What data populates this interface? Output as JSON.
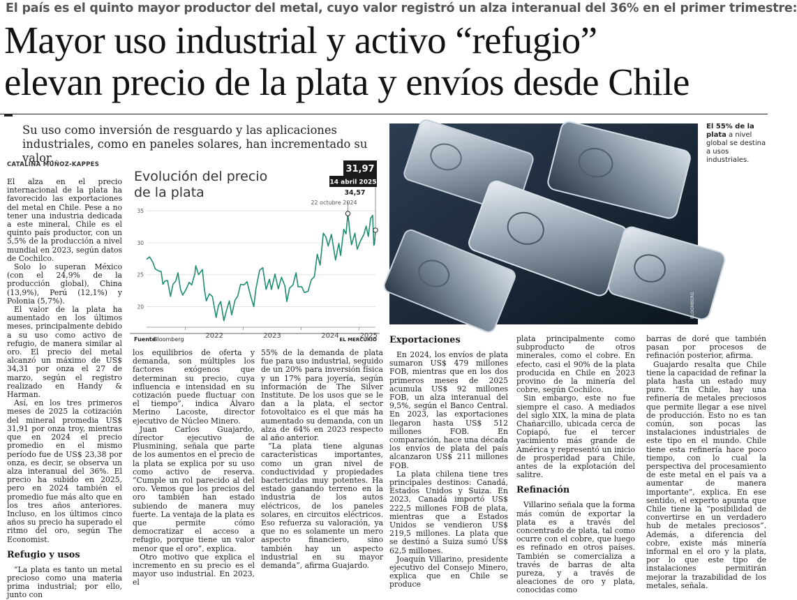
{
  "article": {
    "kicker": "El país es el quinto mayor productor del metal, cuyo valor registró un alza interanual del 36% en el primer trimestre:",
    "headline_line1": "Mayor uso industrial y activo “refugio”",
    "headline_line2": "elevan precio de la plata y envíos desde Chile",
    "subheadline": "Su uso como inversión de resguardo y las aplicaciones industriales, como en paneles solares, han incrementado su valor.",
    "byline": "CATALINA MUÑOZ-KAPPES",
    "col1": {
      "p1": "El alza en el precio internacional de la plata ha favorecido las exportaciones del metal en Chile. Pese a no tener una industria dedicada a este mineral, Chile es el quinto país productor, con un 5,5% de la producción a nivel mundial en 2023, según datos de Cochilco.",
      "p2": "Solo lo superan México (con el 24,9% de la producción global), China (13,9%), Perú (12,1%) y Polonia (5,7%).",
      "p3": "El valor de la plata ha aumentado en los últimos meses, principalmente debido a su uso como activo de refugio, de manera similar al oro. El precio del metal alcanzó un máximo de US$ 34,31 por onza el 27 de marzo, según el registro realizado en Handy & Harman.",
      "p4": "Así, en los tres primeros meses de 2025 la cotización del mineral promedia US$ 31,91 por onza troy, mientras que en 2024 el precio promedio en el mismo período fue de US$ 23,38 por onza, es decir, se observa un alza interanual del 36%. El precio ha subido en 2025, pero en 2024 también el promedio fue más alto que en los tres años anteriores. Incluso, en los últimos cinco años su precio ha superado el ritmo del oro, según The Economist.",
      "h_refugio": "Refugio y usos",
      "p5": "“La plata es tanto un metal precioso como una materia prima industrial; por ello, junto con"
    },
    "col2": {
      "p1": "los equilibrios de oferta y demanda, son múltiples los factores exógenos que determinan su precio, cuya influencia e intensidad en su cotización puede fluctuar con el tiempo”, indica Álvaro Merino Lacoste, director ejecutivo de Núcleo Minero.",
      "p2": "Juan Carlos Guajardo, director ejecutivo de Plusmining, señala que parte de los aumentos en el precio de la plata se explica por su uso como activo de reserva. “Cumple un rol parecido al del oro. Vemos que los precios del oro también han estado subiendo de manera muy fuerte. La ventaja de la plata es que permite cómo democratizar el acceso a refugio, porque tiene un valor menor que el oro”, explica.",
      "p3": "Otro motivo que explica el incremento en su precio es el mayor uso industrial. En 2023, el"
    },
    "col3": {
      "p1": "55% de la demanda de plata fue para uso industrial, seguido de un 20% para inversión física y un 17% para joyería, según información de The Silver Institute. De los usos que se le dan a la plata, el sector fotovoltaico es el que más ha aumentado su demanda, con un alza de 64% en 2023 respecto al año anterior.",
      "p2": "“La plata tiene algunas características importantes, como un gran nivel de conductividad y propiedades bactericidas muy potentes. Ha estado ganando terreno en la industria de los autos eléctricos, de los paneles solares, en circuitos eléctricos. Eso refuerza su valoración, ya que no es solamente un mero aspecto financiero, sino también hay un aspecto industrial en su mayor demanda”, afirma Guajardo."
    },
    "col4": {
      "h_export": "Exportaciones",
      "p1": "En 2024, los envíos de plata sumaron US$ 479 millones FOB, mientras que en los dos primeros meses de 2025 acumula US$ 92 millones FOB, un alza interanual del 9,5%, según el Banco Central. En 2023, las exportaciones llegaron hasta US$ 512 millones FOB. En comparación, hace una década los envíos de plata del país alcanzaron US$ 211 millones FOB.",
      "p2": "La plata chilena tiene tres principales destinos: Canadá, Estados Unidos y Suiza. En 2023, Canadá importó US$ 222,5 millones FOB de plata, mientras que a Estados Unidos se vendieron US$ 219,5 millones. La plata que se destinó a Suiza sumó US$ 62,5 millones.",
      "p3": "Joaquín Villarino, presidente ejecutivo del Consejo Minero, explica que en Chile se produce"
    },
    "col5": {
      "p1": "plata principalmente como subproducto de otros minerales, como el cobre. En efecto, casi el 90% de la plata producida en Chile en 2023 provino de la minería del cobre, según Cochilco.",
      "p2": "Sin embargo, este no fue siempre el caso. A mediados del siglo XIX, la mina de plata Chañarcillo, ubicada cerca de Copiapó, fue el tercer yacimiento más grande de América y representó un inicio de prosperidad para Chile, antes de la explotación del salitre.",
      "h_refinacion": "Refinación",
      "p3": "Villarino señala que la forma más común de exportar la plata es a través del concentrado de plata, tal como ocurre con el cobre, que luego es refinado en otros países. También se comercializa a través de barras de alta pureza, y a través de aleaciones de oro y plata, conocidas como"
    },
    "col6": {
      "p1": "barras de doré que también pasan por procesos de refinación posterior, afirma.",
      "p2": "Guajardo resalta que Chile tiene la capacidad de refinar la plata hasta un estado muy puro. “En Chile, hay una refinería de metales preciosos que permite llegar a ese nivel de producción. Esto no es tan común, son pocas las instalaciones industriales de este tipo en el mundo. Chile tiene esta refinería hace poco tiempo, con lo cual la perspectiva del procesamiento de este metal en el país va a aumentar de manera importante”, explica. En ese sentido, el experto apunta que Chile tiene la “posibilidad de convertirse en un verdadero hub de metales preciosos”. Además, a diferencia del cobre, existe más minería informal en el oro y la plata, por lo que este tipo de instalaciones permitirán mejorar la trazabilidad de los metales, señala."
    }
  },
  "photo": {
    "caption_bold": "El 55% de la plata",
    "caption_rest": " a nivel global se destina a usos industriales.",
    "credit": "BLOOMBERG"
  },
  "chart": {
    "footer_source_label": "Fuente",
    "footer_source": "Bloomberg",
    "footer_brand": "EL MERCURIO"
  },
  "chart_data": {
    "type": "line",
    "title": "Evolución del precio de la plata",
    "title_line1": "Evolución del precio",
    "title_line2": "de la plata",
    "xlabel": "",
    "ylabel": "",
    "x_ticks": [
      "2022",
      "2023",
      "2024",
      "2025"
    ],
    "y_ticks": [
      20,
      25,
      30,
      35
    ],
    "ylim": [
      17,
      36
    ],
    "grid": true,
    "annotations": [
      {
        "label_value": "34,57",
        "label_date": "22 octubre 2024",
        "x": "2024-10-22",
        "y": 34.57
      },
      {
        "label_value": "31,97",
        "label_date": "14 abril 2025",
        "x": "2025-04-14",
        "y": 31.97
      }
    ],
    "series": [
      {
        "values": [
          [
            "2021-05-01",
            27.4
          ],
          [
            "2021-05-20",
            27.8
          ],
          [
            "2021-06-10",
            26.9
          ],
          [
            "2021-06-25",
            25.9
          ],
          [
            "2021-07-15",
            25.6
          ],
          [
            "2021-08-01",
            25.5
          ],
          [
            "2021-08-12",
            23.5
          ],
          [
            "2021-08-25",
            24.0
          ],
          [
            "2021-09-10",
            24.1
          ],
          [
            "2021-09-29",
            21.6
          ],
          [
            "2021-10-15",
            23.5
          ],
          [
            "2021-11-01",
            24.0
          ],
          [
            "2021-11-15",
            25.3
          ],
          [
            "2021-12-01",
            22.7
          ],
          [
            "2021-12-15",
            21.8
          ],
          [
            "2022-01-05",
            22.7
          ],
          [
            "2022-01-25",
            23.8
          ],
          [
            "2022-02-10",
            23.4
          ],
          [
            "2022-03-01",
            25.1
          ],
          [
            "2022-03-08",
            26.4
          ],
          [
            "2022-03-25",
            25.0
          ],
          [
            "2022-04-18",
            25.8
          ],
          [
            "2022-05-01",
            22.7
          ],
          [
            "2022-05-13",
            20.9
          ],
          [
            "2022-06-01",
            22.0
          ],
          [
            "2022-06-20",
            21.6
          ],
          [
            "2022-07-14",
            18.3
          ],
          [
            "2022-07-29",
            20.2
          ],
          [
            "2022-08-12",
            20.8
          ],
          [
            "2022-09-01",
            17.8
          ],
          [
            "2022-09-15",
            19.2
          ],
          [
            "2022-10-05",
            20.9
          ],
          [
            "2022-10-20",
            18.7
          ],
          [
            "2022-11-10",
            21.0
          ],
          [
            "2022-11-28",
            21.7
          ],
          [
            "2022-12-15",
            23.5
          ],
          [
            "2023-01-05",
            23.4
          ],
          [
            "2023-01-25",
            23.9
          ],
          [
            "2023-02-15",
            21.8
          ],
          [
            "2023-03-08",
            20.0
          ],
          [
            "2023-03-22",
            22.8
          ],
          [
            "2023-04-14",
            25.7
          ],
          [
            "2023-05-04",
            26.1
          ],
          [
            "2023-05-25",
            22.7
          ],
          [
            "2023-06-15",
            24.3
          ],
          [
            "2023-06-28",
            22.7
          ],
          [
            "2023-07-20",
            25.1
          ],
          [
            "2023-08-10",
            22.8
          ],
          [
            "2023-08-30",
            24.6
          ],
          [
            "2023-09-20",
            23.3
          ],
          [
            "2023-10-03",
            20.8
          ],
          [
            "2023-10-20",
            22.9
          ],
          [
            "2023-11-10",
            23.4
          ],
          [
            "2023-11-30",
            25.3
          ],
          [
            "2023-12-13",
            23.1
          ],
          [
            "2024-01-05",
            23.1
          ],
          [
            "2024-01-22",
            22.2
          ],
          [
            "2024-02-14",
            22.4
          ],
          [
            "2024-03-05",
            24.2
          ],
          [
            "2024-03-25",
            24.7
          ],
          [
            "2024-04-12",
            28.2
          ],
          [
            "2024-04-30",
            26.5
          ],
          [
            "2024-05-20",
            31.5
          ],
          [
            "2024-06-05",
            30.9
          ],
          [
            "2024-06-20",
            29.5
          ],
          [
            "2024-07-10",
            31.3
          ],
          [
            "2024-08-05",
            27.3
          ],
          [
            "2024-08-26",
            29.9
          ],
          [
            "2024-09-06",
            28.0
          ],
          [
            "2024-09-26",
            32.1
          ],
          [
            "2024-10-10",
            31.4
          ],
          [
            "2024-10-22",
            34.57
          ],
          [
            "2024-11-05",
            31.2
          ],
          [
            "2024-11-14",
            29.7
          ],
          [
            "2024-12-05",
            31.5
          ],
          [
            "2024-12-20",
            29.0
          ],
          [
            "2025-01-10",
            30.3
          ],
          [
            "2025-01-31",
            31.3
          ],
          [
            "2025-02-14",
            32.6
          ],
          [
            "2025-02-28",
            31.0
          ],
          [
            "2025-03-14",
            33.8
          ],
          [
            "2025-03-27",
            34.31
          ],
          [
            "2025-04-04",
            29.6
          ],
          [
            "2025-04-08",
            29.8
          ],
          [
            "2025-04-14",
            31.97
          ]
        ]
      }
    ]
  }
}
